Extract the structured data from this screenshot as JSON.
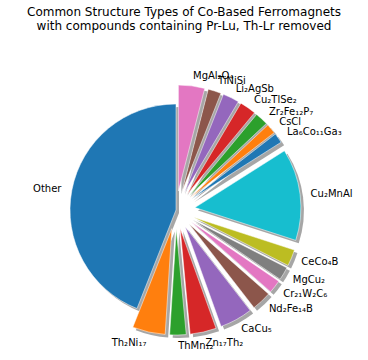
{
  "chart_data": {
    "type": "pie",
    "title": "Common Structure Types of Co-Based Ferromagnets\nwith compounds containing Pr-Lu, Th-Lr removed",
    "categories": [
      "Other",
      "Th₂Ni₁₇",
      "ThMn₁₂",
      "Zn₁₇Th₂",
      "CaCu₅",
      "Nd₂Fe₁₄B",
      "Cr₂₁W₂C₆",
      "MgCu₂",
      "CeCo₄B",
      "Cu₂MnAl",
      "La₆Co₁₁Ga₃",
      "CsCl",
      "Zr₂Fe₁₂P₇",
      "Cu₂TlSe₂",
      "Li₂AgSb",
      "TiNiSi",
      "MgAl₂O₄"
    ],
    "values": [
      44,
      5,
      2.5,
      4,
      5,
      3,
      2,
      2,
      2.5,
      14,
      1.5,
      1.5,
      2,
      2.5,
      2.5,
      2,
      4
    ],
    "colors": [
      "#1f77b4",
      "#ff7f0e",
      "#2ca02c",
      "#d62728",
      "#9467bd",
      "#8c564b",
      "#e377c2",
      "#7f7f7f",
      "#bcbd22",
      "#17becf",
      "#1f77b4",
      "#ff7f0e",
      "#2ca02c",
      "#d62728",
      "#9467bd",
      "#8c564b",
      "#e377c2"
    ]
  }
}
